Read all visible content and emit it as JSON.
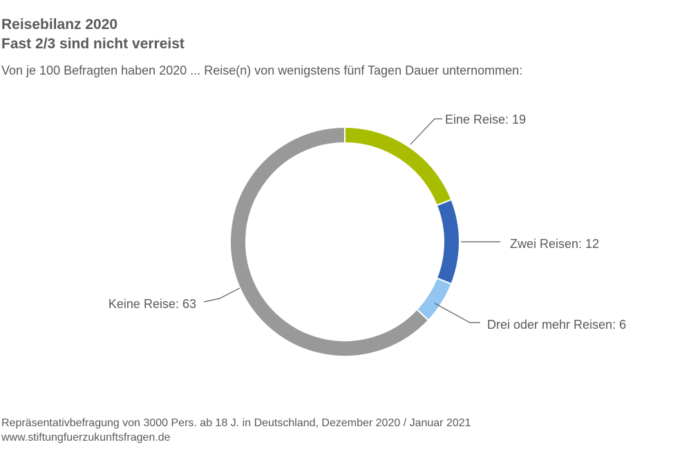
{
  "header": {
    "title_line1": "Reisebilanz 2020",
    "title_line2": "Fast 2/3 sind nicht verreist",
    "subtitle": "Von je 100 Befragten haben 2020 ... Reise(n) von wenigstens fünf Tagen Dauer unternommen:"
  },
  "footer": {
    "source": "Repräsentativbefragung von 3000 Pers. ab 18 J. in Deutschland, Dezember 2020 / Januar 2021",
    "url": "www.stiftungfuerzukunftsfragen.de"
  },
  "chart_data": {
    "type": "pie",
    "variant": "donut",
    "title": "Reisebilanz 2020",
    "subtitle": "Fast 2/3 sind nicht verreist",
    "slices": [
      {
        "name": "Eine Reise",
        "value": 19,
        "label": "Eine Reise: 19",
        "color": "#a9bd00"
      },
      {
        "name": "Zwei Reisen",
        "value": 12,
        "label": "Zwei Reisen: 12",
        "color": "#3565b8"
      },
      {
        "name": "Drei oder mehr Reisen",
        "value": 6,
        "label": "Drei oder mehr Reisen: 6",
        "color": "#92c5f0"
      },
      {
        "name": "Keine Reise",
        "value": 63,
        "label": "Keine Reise: 63",
        "color": "#999999"
      }
    ],
    "start_angle": "12 o'clock",
    "direction": "clockwise",
    "legend": "none"
  }
}
